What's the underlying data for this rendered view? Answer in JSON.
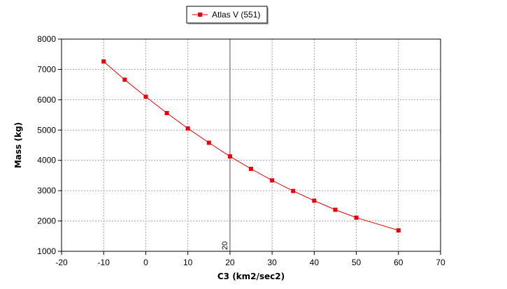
{
  "chart_data": {
    "type": "line",
    "title": "",
    "xlabel": "C3 (km2/sec2)",
    "ylabel": "Mass (kg)",
    "xlim": [
      -20,
      70
    ],
    "ylim": [
      1000,
      8000
    ],
    "x_ticks": [
      -20,
      -10,
      0,
      10,
      20,
      30,
      40,
      50,
      60,
      70
    ],
    "y_ticks": [
      1000,
      2000,
      3000,
      4000,
      5000,
      6000,
      7000,
      8000
    ],
    "x_tick_labels": [
      "-20",
      "-10",
      "0",
      "10",
      "20",
      "30",
      "40",
      "50",
      "60",
      "70"
    ],
    "y_tick_labels": [
      "1000",
      "2000",
      "3000",
      "4000",
      "5000",
      "6000",
      "7000",
      "8000"
    ],
    "grid": true,
    "legend_position": "top-center",
    "series": [
      {
        "name": "Atlas V (551)",
        "color": "#e8000a",
        "marker": "square",
        "x": [
          -10,
          -5,
          0,
          5,
          10,
          15,
          20,
          25,
          30,
          35,
          40,
          45,
          50,
          60
        ],
        "y": [
          7260,
          6660,
          6100,
          5560,
          5050,
          4580,
          4130,
          3720,
          3340,
          2990,
          2670,
          2370,
          2110,
          1690
        ]
      }
    ],
    "reference_line": {
      "x": 20,
      "label": "20"
    }
  }
}
